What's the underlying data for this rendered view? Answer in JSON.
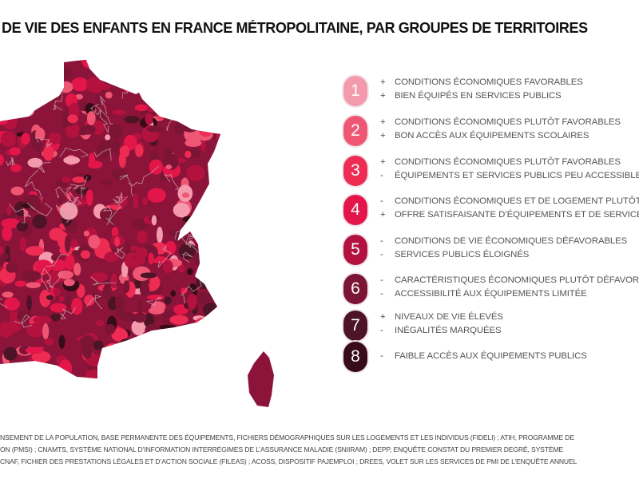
{
  "title": "DE VIE DES ENFANTS EN FRANCE MÉTROPOLITAINE, PAR GROUPES DE TERRITOIRES",
  "legend": [
    {
      "number": "1",
      "color": "#f49aad",
      "lines": [
        {
          "sign": "+",
          "text": "CONDITIONS ÉCONOMIQUES FAVORABLES"
        },
        {
          "sign": "+",
          "text": "BIEN ÉQUIPÉS EN SERVICES PUBLICS"
        }
      ]
    },
    {
      "number": "2",
      "color": "#ef5674",
      "lines": [
        {
          "sign": "+",
          "text": "CONDITIONS ÉCONOMIQUES PLUTÔT FAVORABLES"
        },
        {
          "sign": "+",
          "text": "BON ACCÈS AUX ÉQUIPEMENTS SCOLAIRES"
        }
      ]
    },
    {
      "number": "3",
      "color": "#ee2b52",
      "lines": [
        {
          "sign": "+",
          "text": "CONDITIONS ÉCONOMIQUES PLUTÔT FAVORABLES"
        },
        {
          "sign": "-",
          "text": "ÉQUIPEMENTS ET SERVICES PUBLICS PEU ACCESSIBLES"
        }
      ]
    },
    {
      "number": "4",
      "color": "#e3164a",
      "lines": [
        {
          "sign": "-",
          "text": "CONDITIONS ÉCONOMIQUES ET DE LOGEMENT PLUTÔT"
        },
        {
          "sign": "+",
          "text": "OFFRE SATISFAISANTE D’ÉQUIPEMENTS ET DE SERVICES"
        }
      ]
    },
    {
      "number": "5",
      "color": "#b3123f",
      "lines": [
        {
          "sign": "-",
          "text": "CONDITIONS DE VIE ÉCONOMIQUES DÉFAVORABLES"
        },
        {
          "sign": "-",
          "text": "SERVICES PUBLICS ÉLOIGNÉS"
        }
      ]
    },
    {
      "number": "6",
      "color": "#7c1535",
      "lines": [
        {
          "sign": "-",
          "text": "CARACTÉRISTIQUES ÉCONOMIQUES PLUTÔT DÉFAVORABLES"
        },
        {
          "sign": "-",
          "text": "ACCESSIBILITÉ AUX ÉQUIPEMENTS LIMITÉE"
        }
      ]
    },
    {
      "number": "7",
      "color": "#4c1426",
      "lines": [
        {
          "sign": "+",
          "text": "NIVEAUX DE VIE ÉLEVÉS"
        },
        {
          "sign": "-",
          "text": "INÉGALITÉS MARQUÉES"
        }
      ]
    },
    {
      "number": "8",
      "color": "#380b19",
      "lines": [
        {
          "sign": "-",
          "text": "FAIBLE ACCÈS AUX ÉQUIPEMENTS PUBLICS"
        }
      ]
    }
  ],
  "footer": [
    "NSEMENT DE LA POPULATION, BASE PERMANENTE DES ÉQUIPEMENTS, FICHIERS DÉMOGRAPHIQUES SUR LES LOGEMENTS ET LES INDIVIDUS (FIDELI) ; ATIH, PROGRAMME DE",
    "ON (PMSI) ; CNAMTS, SYSTÈME NATIONAL D’INFORMATION INTERRÉGIMES DE L’ASSURANCE MALADIE (SNIIRAM) ; DEPP, ENQUÊTE CONSTAT DU PREMIER DEGRÉ, SYSTÈME",
    "CNAF, FICHIER DES PRESTATIONS LÉGALES ET D’ACTION SOCIALE (FILEAS) ; ACOSS, DISPOSITIF PAJEMPLOI ; DREES, VOLET SUR LES SERVICES DE PMI DE L’ENQUÊTE ANNUEL"
  ]
}
